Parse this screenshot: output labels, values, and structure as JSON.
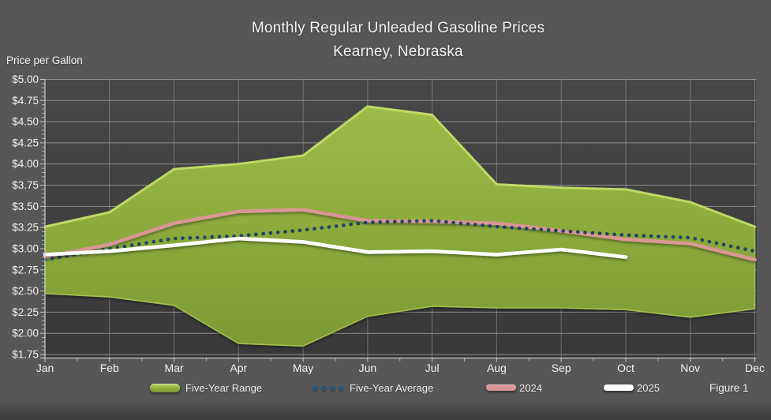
{
  "title": {
    "line1": "Monthly Regular Unleaded Gasoline Prices",
    "line2": "Kearney, Nebraska"
  },
  "colors": {
    "background": "#575757",
    "plot_background_top": "#474747",
    "plot_background_bottom": "#383838",
    "gridline": "#A0A0A0",
    "axis": "#C8C8C8",
    "text": "#F2F2F2",
    "range_fill": "#8FAE3D",
    "range_highlight": "#C2DB67",
    "average_dots": "#1F4460",
    "line_2024": "#D99694",
    "line_2025": "#FFFFFF"
  },
  "chart_data": {
    "type": "area",
    "subtype": "five-year-range-band-with-lines",
    "title": "Monthly Regular Unleaded Gasoline Prices",
    "subtitle": "Kearney, Nebraska",
    "ylabel": "Price per Gallon",
    "xlabel": "",
    "figure_label": "Figure 1",
    "grid": true,
    "legend_position": "bottom",
    "ylim": [
      1.75,
      5.0
    ],
    "y_major_step": 0.25,
    "y_minor_step": 0.05,
    "y_tick_labels": [
      "$5.00",
      "$4.75",
      "$4.50",
      "$4.25",
      "$4.00",
      "$3.75",
      "$3.50",
      "$3.25",
      "$3.00",
      "$2.75",
      "$2.50",
      "$2.25",
      "$2.00",
      "$1.75"
    ],
    "categories": [
      "Jan",
      "Feb",
      "Mar",
      "Apr",
      "May",
      "Jun",
      "Jul",
      "Aug",
      "Sep",
      "Oct",
      "Nov",
      "Dec"
    ],
    "series": [
      {
        "name": "Five-Year Range",
        "type": "range-area",
        "color": "#8FAE3D",
        "max": [
          3.26,
          3.43,
          3.94,
          4.0,
          4.1,
          4.68,
          4.58,
          3.76,
          3.72,
          3.7,
          3.55,
          3.26
        ],
        "min": [
          2.47,
          2.43,
          2.33,
          1.88,
          1.85,
          2.2,
          2.32,
          2.3,
          2.3,
          2.28,
          2.19,
          2.29
        ]
      },
      {
        "name": "Five-Year Average",
        "type": "dotted-line",
        "color": "#1F4460",
        "values": [
          2.87,
          3.0,
          3.12,
          3.15,
          3.22,
          3.31,
          3.33,
          3.26,
          3.21,
          3.16,
          3.13,
          2.97
        ]
      },
      {
        "name": "2024",
        "type": "line",
        "color": "#D99694",
        "values": [
          2.9,
          3.05,
          3.3,
          3.44,
          3.46,
          3.33,
          3.32,
          3.3,
          3.21,
          3.11,
          3.06,
          2.87
        ]
      },
      {
        "name": "2025",
        "type": "line",
        "color": "#FFFFFF",
        "values": [
          2.93,
          2.97,
          3.04,
          3.12,
          3.08,
          2.96,
          2.97,
          2.93,
          2.99,
          2.9,
          null,
          null
        ]
      }
    ]
  }
}
